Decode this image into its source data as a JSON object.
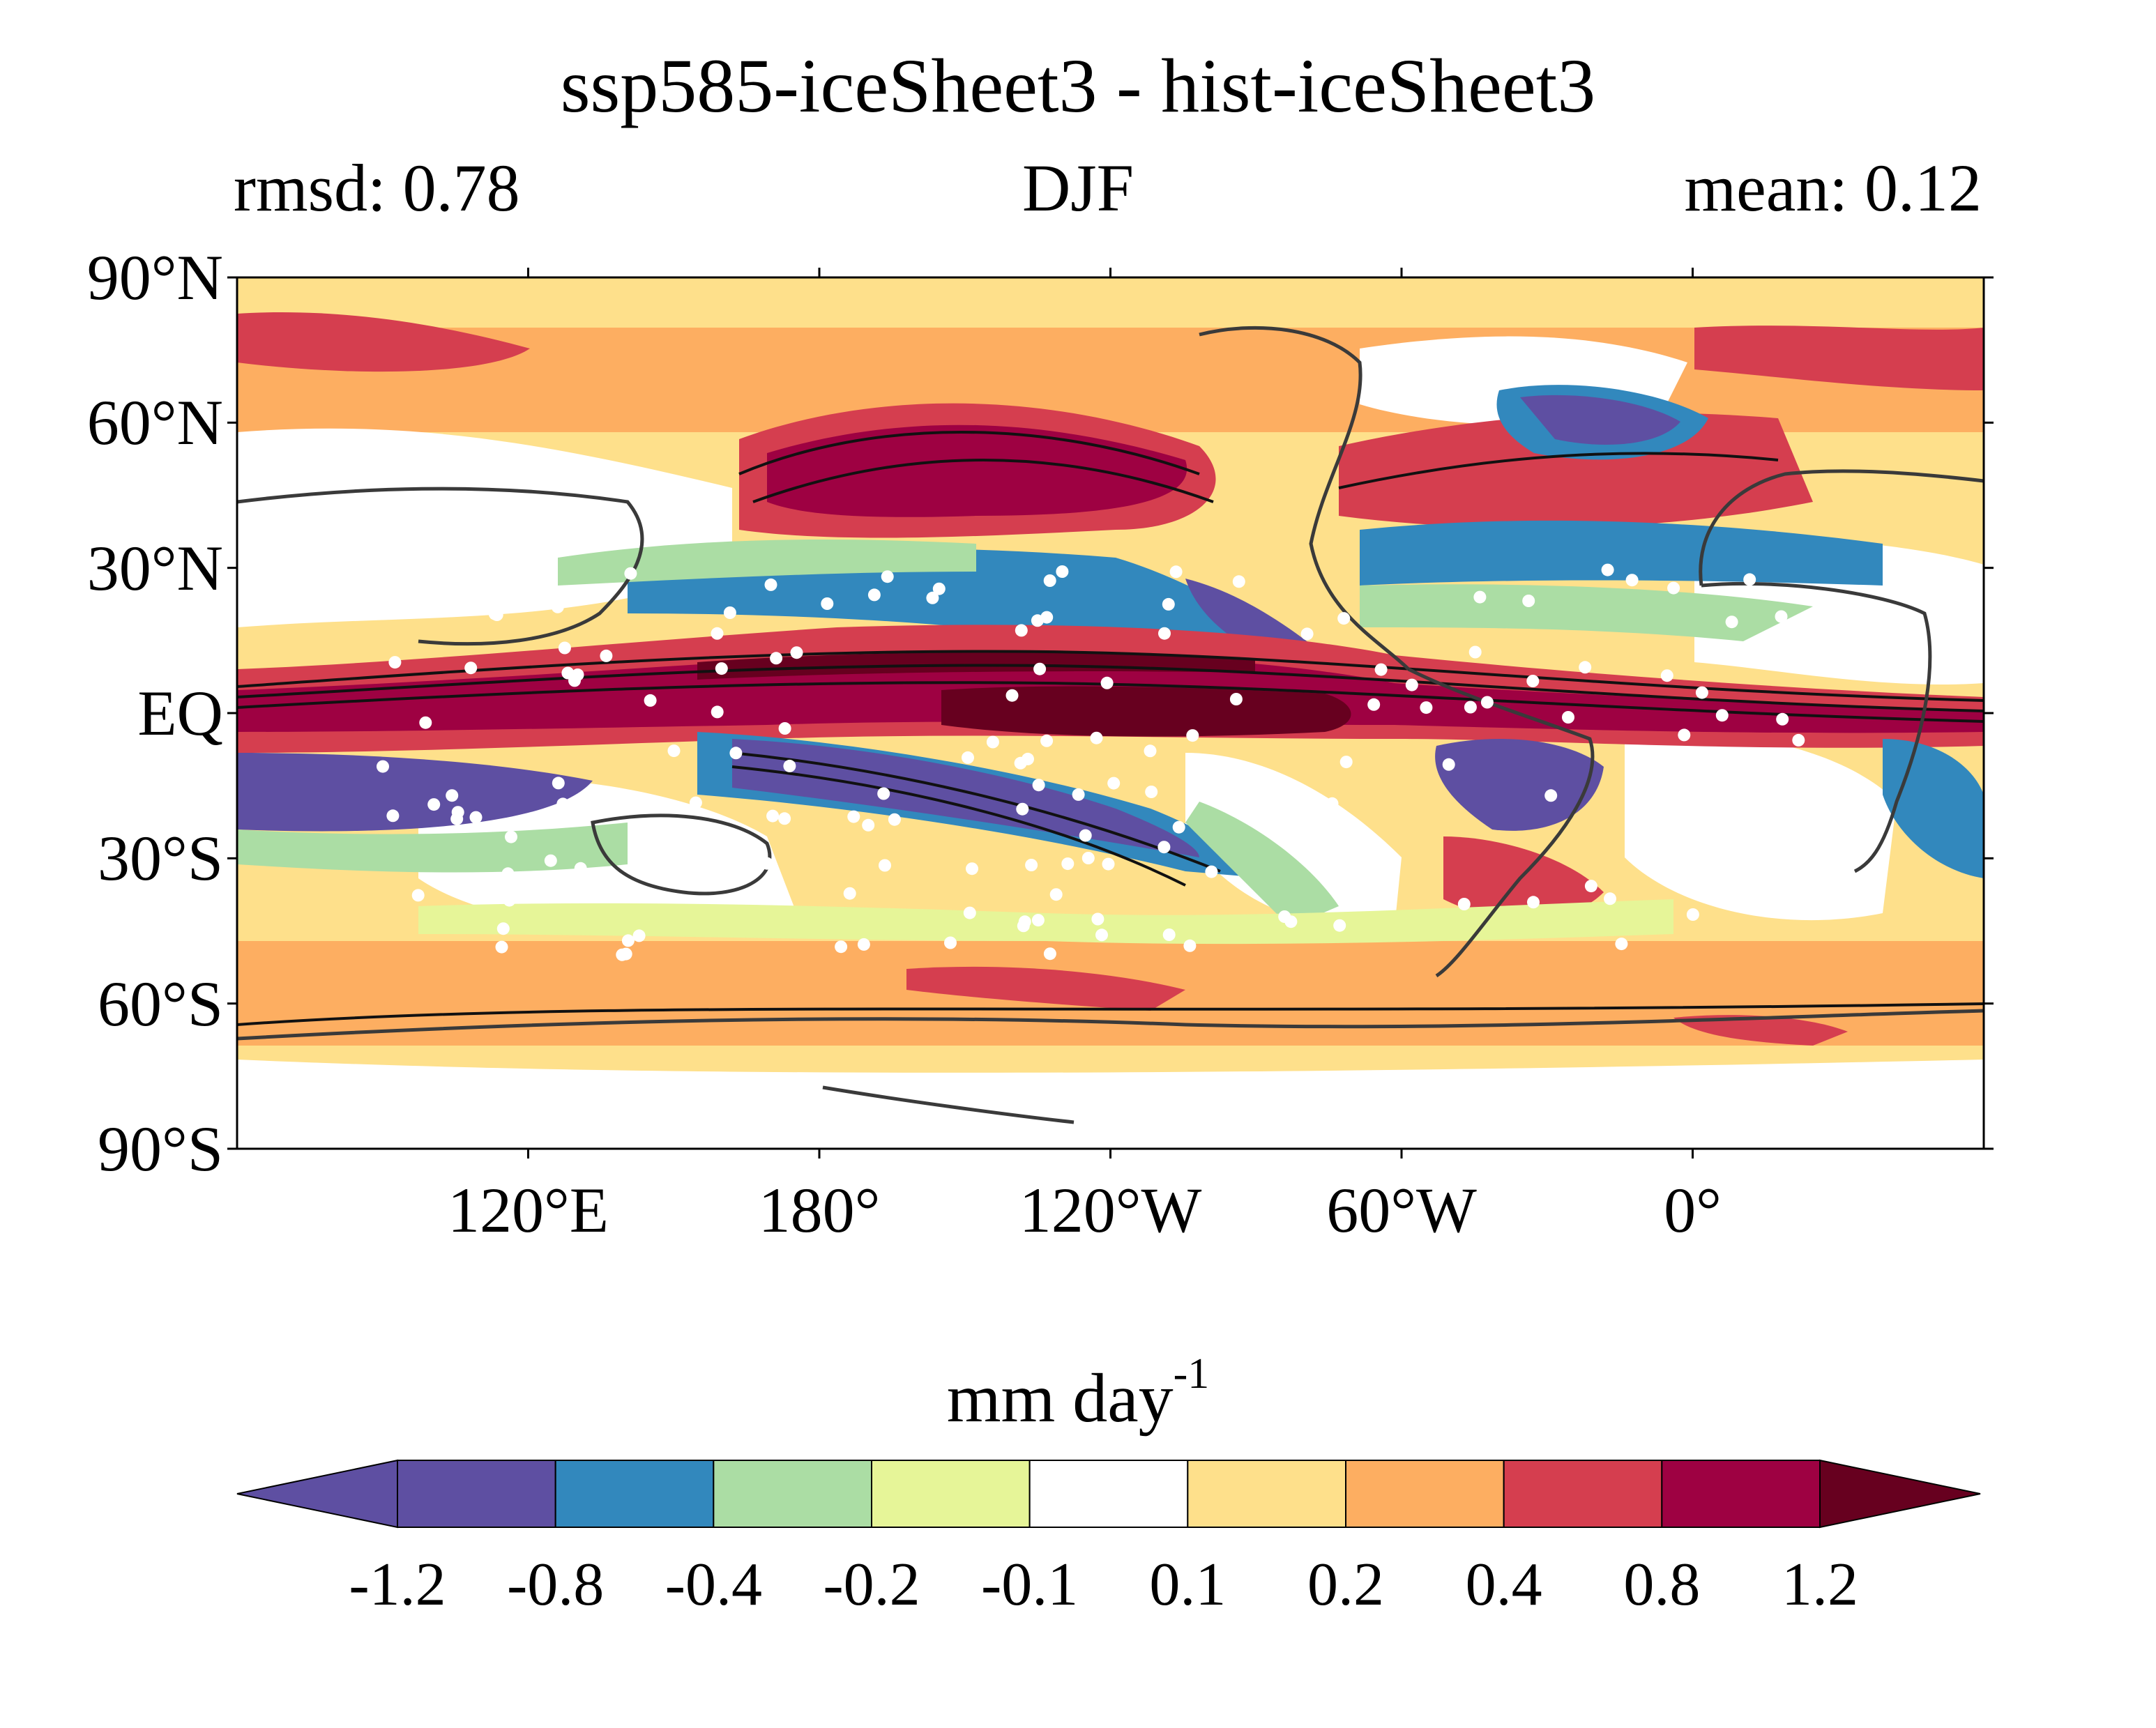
{
  "title": "ssp585-iceSheet3 - hist-iceSheet3",
  "subtitle_left": "rmsd: 0.78",
  "subtitle_center": "DJF",
  "subtitle_right": "mean: 0.12",
  "map": {
    "projection": "equirectangular",
    "lon_range": [
      60,
      420
    ],
    "lat_range": [
      -90,
      90
    ],
    "lat_ticks": [
      {
        "value": 90,
        "label": "90°N"
      },
      {
        "value": 60,
        "label": "60°N"
      },
      {
        "value": 30,
        "label": "30°N"
      },
      {
        "value": 0,
        "label": "EQ"
      },
      {
        "value": -30,
        "label": "30°S"
      },
      {
        "value": -60,
        "label": "60°S"
      },
      {
        "value": -90,
        "label": "90°S"
      }
    ],
    "lon_ticks": [
      {
        "value": 120,
        "label": "120°E"
      },
      {
        "value": 180,
        "label": "180°"
      },
      {
        "value": 240,
        "label": "120°W"
      },
      {
        "value": 300,
        "label": "60°W"
      },
      {
        "value": 360,
        "label": "0°"
      }
    ],
    "overlays": [
      "filled contours of precipitation difference",
      "black contour lines",
      "white stippling dots",
      "coastlines"
    ]
  },
  "colorbar": {
    "label_main": "mm day",
    "label_sup": "-1",
    "bounds": [
      -1.2,
      -0.8,
      -0.4,
      -0.2,
      -0.1,
      0.1,
      0.2,
      0.4,
      0.8,
      1.2
    ],
    "tick_labels": [
      "-1.2",
      "-0.8",
      "-0.4",
      "-0.2",
      "-0.1",
      "0.1",
      "0.2",
      "0.4",
      "0.8",
      "1.2"
    ],
    "colors": [
      "#5e4fa2",
      "#3288bd",
      "#abdda4",
      "#e6f598",
      "#ffffff",
      "#fee08b",
      "#fdae61",
      "#d53e4f",
      "#9e0142"
    ],
    "under_color": "#5e4fa2",
    "over_color": "#67001f",
    "extend": "both"
  }
}
